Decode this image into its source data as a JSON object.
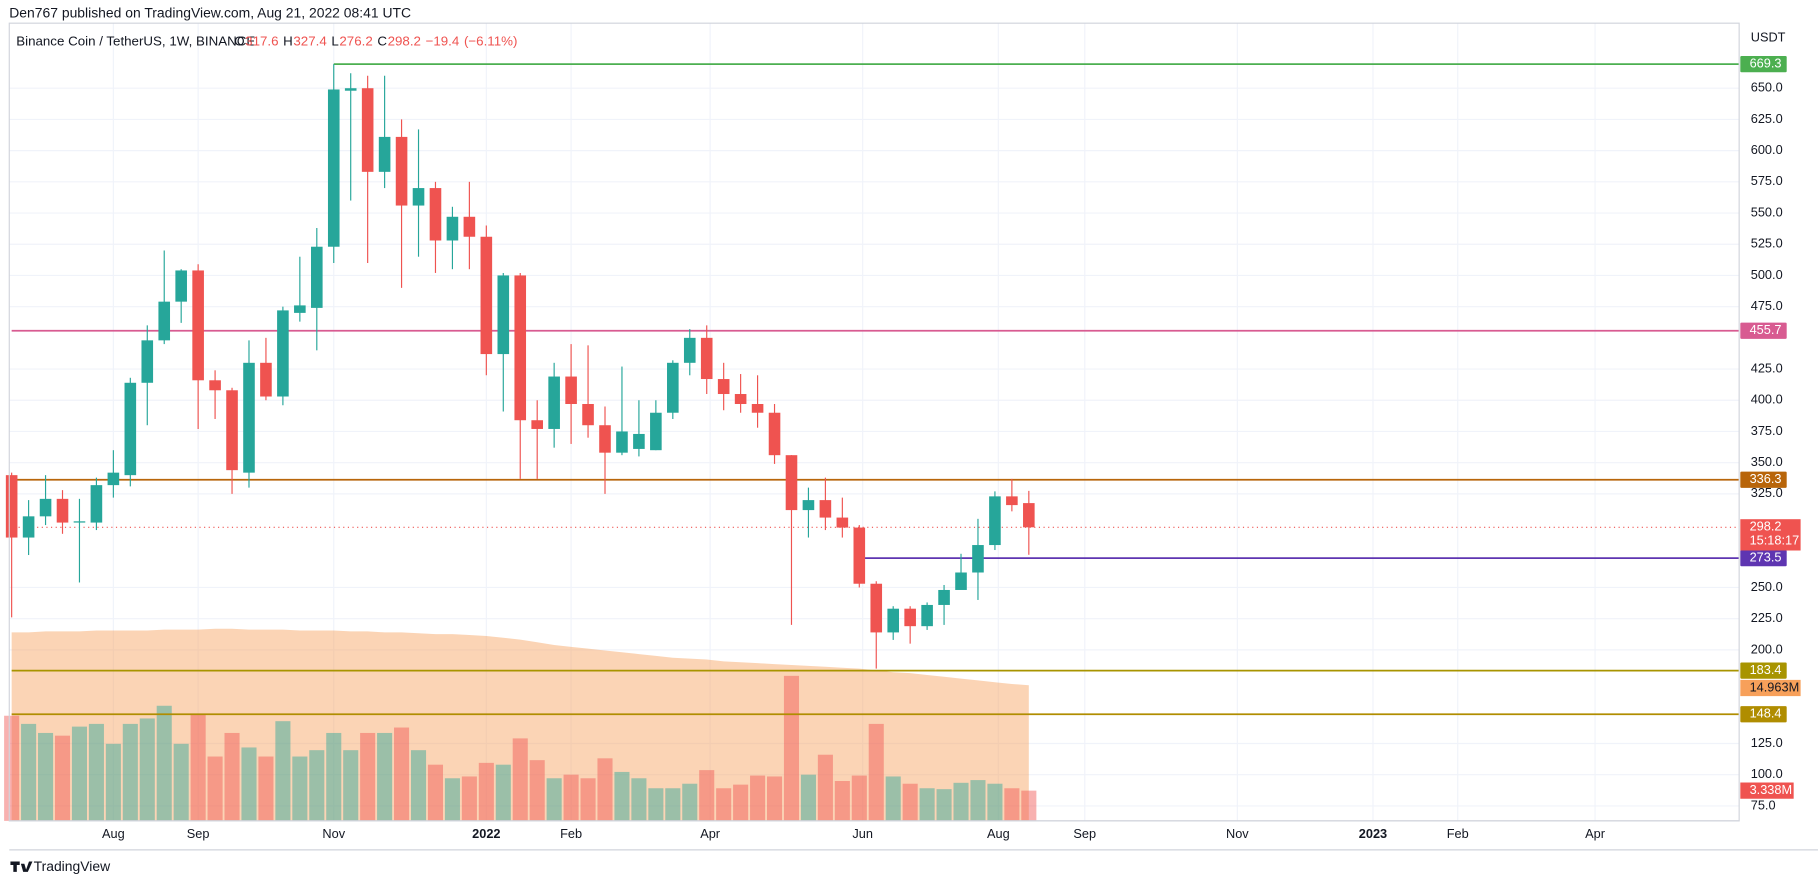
{
  "header": {
    "published": "Den767 published on TradingView.com, Aug 21, 2022 08:41 UTC",
    "brand": "TradingView"
  },
  "chart_data": {
    "type": "candlestick",
    "title": "Binance Coin / TetherUS, 1W, BINANCE",
    "ohlc_letters": [
      "O",
      "H",
      "L",
      "C"
    ],
    "change": {
      "value": -19.4,
      "label": "−19.4"
    },
    "change_percent": {
      "value": -6.11,
      "label": "(−6.11%)"
    },
    "countdown": "15:18:17",
    "y_unit": "USDT",
    "colors": {
      "up": "#26a69a",
      "down": "#ef5350"
    },
    "open": [
      340,
      290,
      307,
      321,
      302,
      302,
      332,
      340,
      414,
      448,
      479,
      504,
      416,
      408,
      342,
      430,
      403,
      470,
      474,
      523,
      648,
      650,
      583,
      611,
      556,
      570,
      528,
      547,
      531,
      437,
      500,
      384,
      377,
      419,
      397,
      380,
      358,
      361,
      360,
      390,
      430,
      450,
      417,
      405,
      397,
      390,
      356,
      312,
      320,
      306,
      298,
      253,
      214,
      233,
      219,
      236,
      248,
      262,
      284,
      323,
      317.6
    ],
    "high": [
      342,
      320,
      340,
      328,
      321,
      338,
      360,
      418,
      460,
      520,
      505,
      509,
      424,
      410,
      448,
      450,
      475,
      515,
      538,
      669.3,
      662,
      660,
      660,
      625,
      617,
      575,
      555,
      575,
      540,
      502,
      502,
      400,
      430,
      445,
      444,
      395,
      427,
      400,
      400,
      432,
      457,
      460,
      430,
      421,
      420,
      397,
      356,
      330,
      338,
      322,
      300,
      255,
      235,
      235,
      238,
      252,
      277,
      305,
      327,
      337,
      327.4
    ],
    "low": [
      226,
      276,
      300,
      293,
      254,
      296,
      322,
      331,
      380,
      445,
      462,
      377,
      385,
      325,
      330,
      400,
      396,
      463,
      440,
      510,
      560,
      510,
      570,
      490,
      515,
      502,
      505,
      505,
      420,
      391,
      337,
      337,
      362,
      365,
      370,
      325,
      356,
      355,
      360,
      385,
      420,
      405,
      392,
      390,
      378,
      349,
      220,
      290,
      296,
      290,
      250,
      185,
      208,
      205,
      216,
      220,
      253,
      240,
      280,
      311,
      276.2
    ],
    "close": [
      290,
      307,
      321,
      302,
      303,
      332,
      342,
      414,
      448,
      479,
      504,
      416,
      408,
      344,
      430,
      403,
      472,
      476,
      523,
      649,
      650,
      583,
      611,
      556,
      570,
      528,
      547,
      531,
      437,
      500,
      384,
      377,
      419,
      397,
      380,
      358,
      375,
      373,
      390,
      430,
      450,
      417,
      405,
      397,
      390,
      356,
      312,
      320,
      306,
      298,
      253,
      214,
      233,
      219,
      236,
      248,
      262,
      284,
      323,
      316,
      298.2
    ],
    "volume": {
      "values": [
        11.6,
        10.7,
        9.7,
        9.4,
        10.4,
        10.7,
        8.5,
        10.7,
        11.3,
        12.7,
        8.5,
        11.8,
        7.1,
        9.7,
        8.1,
        7.1,
        11.0,
        7.1,
        7.8,
        9.7,
        7.8,
        9.7,
        9.7,
        10.3,
        7.8,
        6.2,
        4.7,
        4.9,
        6.4,
        6.2,
        9.1,
        6.7,
        4.7,
        5.1,
        4.7,
        6.9,
        5.4,
        4.7,
        3.6,
        3.6,
        4.1,
        5.6,
        3.6,
        4.0,
        5.0,
        4.9,
        16.0,
        5.1,
        7.3,
        4.4,
        5.0,
        10.7,
        4.9,
        4.1,
        3.6,
        3.5,
        4.2,
        4.5,
        4.1,
        3.6,
        3.338
      ],
      "value_labels": [
        null,
        null,
        null,
        null,
        null,
        null,
        null,
        null,
        null,
        null,
        null,
        null,
        null,
        null,
        null,
        null,
        null,
        null,
        null,
        null,
        null,
        null,
        null,
        null,
        null,
        null,
        null,
        null,
        null,
        null,
        null,
        null,
        null,
        null,
        null,
        null,
        null,
        null,
        null,
        null,
        null,
        null,
        null,
        null,
        null,
        null,
        null,
        null,
        null,
        null,
        null,
        null,
        null,
        null,
        null,
        null,
        null,
        null,
        null,
        null,
        "3.338M"
      ]
    },
    "volume_ma": {
      "color": "#f7a05a",
      "values": [
        20.8,
        20.8,
        20.9,
        20.9,
        20.9,
        21.0,
        21.0,
        21.0,
        21.0,
        21.1,
        21.1,
        21.1,
        21.2,
        21.2,
        21.1,
        21.1,
        21.1,
        21.0,
        21.0,
        21.0,
        20.9,
        20.9,
        20.8,
        20.8,
        20.7,
        20.6,
        20.6,
        20.5,
        20.4,
        20.2,
        20.0,
        19.7,
        19.4,
        19.2,
        19.0,
        18.8,
        18.6,
        18.4,
        18.2,
        18.0,
        17.9,
        17.8,
        17.6,
        17.5,
        17.4,
        17.3,
        17.2,
        17.1,
        17.0,
        16.9,
        16.8,
        16.6,
        16.4,
        16.3,
        16.1,
        15.9,
        15.7,
        15.5,
        15.3,
        15.1,
        14.963
      ],
      "value_labels": [
        null,
        null,
        null,
        null,
        null,
        null,
        null,
        null,
        null,
        null,
        null,
        null,
        null,
        null,
        null,
        null,
        null,
        null,
        null,
        null,
        null,
        null,
        null,
        null,
        null,
        null,
        null,
        null,
        null,
        null,
        null,
        null,
        null,
        null,
        null,
        null,
        null,
        null,
        null,
        null,
        null,
        null,
        null,
        null,
        null,
        null,
        null,
        null,
        null,
        null,
        null,
        null,
        null,
        null,
        null,
        null,
        null,
        null,
        null,
        null,
        "14.963M"
      ]
    },
    "volume_ylim": [
      0,
      88
    ],
    "levels": [
      {
        "value": 669.3,
        "color": "#4caf50",
        "start": 19
      },
      {
        "value": 455.7,
        "color": "#d85b91",
        "start": 0
      },
      {
        "value": 336.3,
        "color": "#b8650a",
        "start": 0
      },
      {
        "value": 273.5,
        "color": "#5e35b1",
        "start": 50
      },
      {
        "value": 183.4,
        "color": "#a89400",
        "start": 0
      },
      {
        "value": 148.4,
        "color": "#b08d00",
        "start": 0
      }
    ],
    "xlim": [
      -0.14,
      101.9
    ],
    "xticks": [
      {
        "value": 6,
        "label": "Aug"
      },
      {
        "value": 11,
        "label": "Sep"
      },
      {
        "value": 19,
        "label": "Nov"
      },
      {
        "value": 28,
        "label": "2022"
      },
      {
        "value": 33,
        "label": "Feb"
      },
      {
        "value": 41.2,
        "label": "Apr"
      },
      {
        "value": 50.2,
        "label": "Jun"
      },
      {
        "value": 58.2,
        "label": "Aug"
      },
      {
        "value": 63.3,
        "label": "Sep"
      },
      {
        "value": 72.3,
        "label": "Nov"
      },
      {
        "value": 80.3,
        "label": "2023"
      },
      {
        "value": 85.3,
        "label": "Feb"
      },
      {
        "value": 93.4,
        "label": "Apr"
      }
    ],
    "ylim": [
      63,
      702.1
    ],
    "yticks": [
      {
        "value": 75,
        "label": "75.0"
      },
      {
        "value": 100,
        "label": "100.0"
      },
      {
        "value": 125,
        "label": "125.0"
      },
      {
        "value": 200,
        "label": "200.0"
      },
      {
        "value": 225,
        "label": "225.0"
      },
      {
        "value": 250,
        "label": "250.0"
      },
      {
        "value": 325,
        "label": "325.0"
      },
      {
        "value": 350,
        "label": "350.0"
      },
      {
        "value": 375,
        "label": "375.0"
      },
      {
        "value": 400,
        "label": "400.0"
      },
      {
        "value": 425,
        "label": "425.0"
      },
      {
        "value": 475,
        "label": "475.0"
      },
      {
        "value": 500,
        "label": "500.0"
      },
      {
        "value": 525,
        "label": "525.0"
      },
      {
        "value": 550,
        "label": "550.0"
      },
      {
        "value": 575,
        "label": "575.0"
      },
      {
        "value": 600,
        "label": "600.0"
      },
      {
        "value": 625,
        "label": "625.0"
      },
      {
        "value": 650,
        "label": "650.0"
      }
    ],
    "grid": true
  }
}
